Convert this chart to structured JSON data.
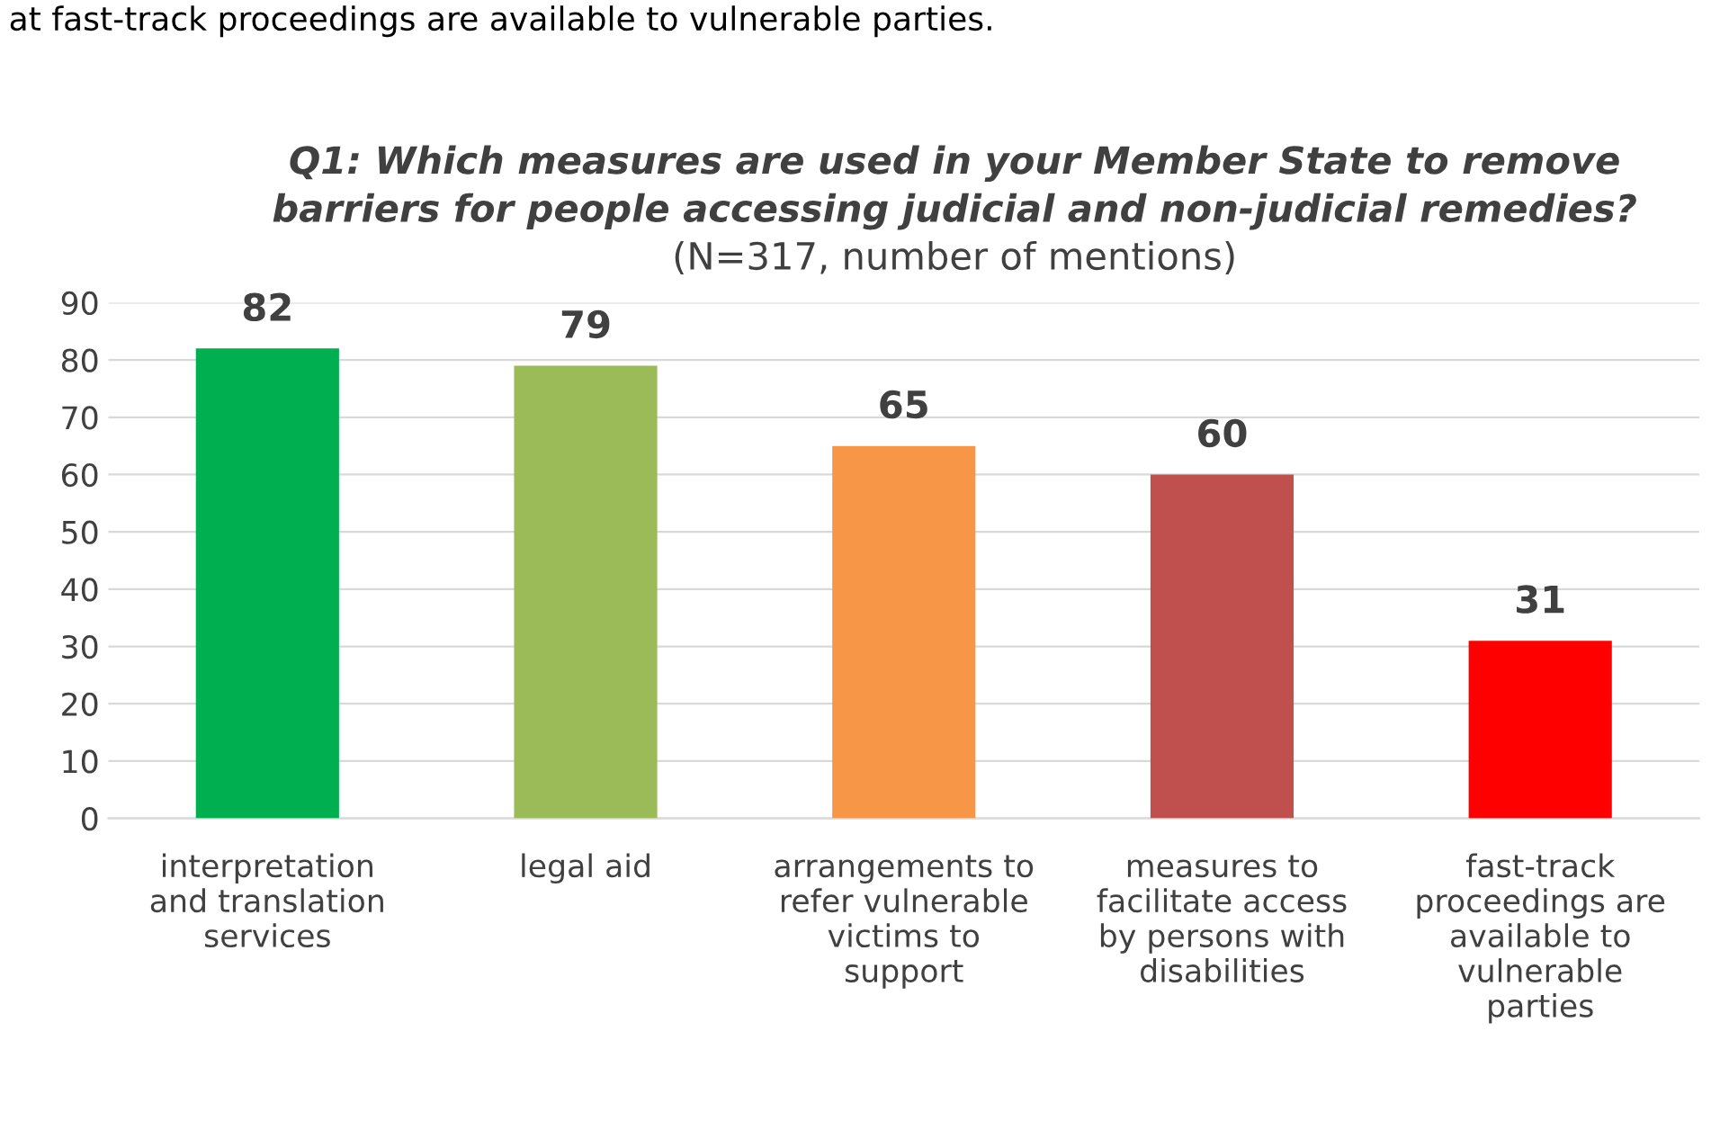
{
  "chart_data": {
    "type": "bar",
    "title": "Q1: Which measures are used in your Member State to remove\nbarriers for people accessing judicial and non-judicial remedies?",
    "subtitle": "(N=317, number of mentions)",
    "annotations": [
      "at fast-track proceedings are available to vulnerable parties."
    ],
    "categories": [
      "interpretation\nand translation\nservices",
      "legal aid",
      "arrangements to\nrefer vulnerable\nvictims to\nsupport",
      "measures to\nfacilitate access\nby persons with\ndisabilities",
      "fast-track\nproceedings are\navailable to\nvulnerable\nparties"
    ],
    "values": [
      82,
      79,
      65,
      60,
      31
    ],
    "colors": [
      "#00b050",
      "#9bbb59",
      "#f79646",
      "#c0504d",
      "#ff0000"
    ],
    "ylim": [
      0,
      90
    ],
    "yticks": [
      0,
      10,
      20,
      30,
      40,
      50,
      60,
      70,
      80,
      90
    ],
    "grid": "y",
    "data_labels": true,
    "legend": false
  }
}
